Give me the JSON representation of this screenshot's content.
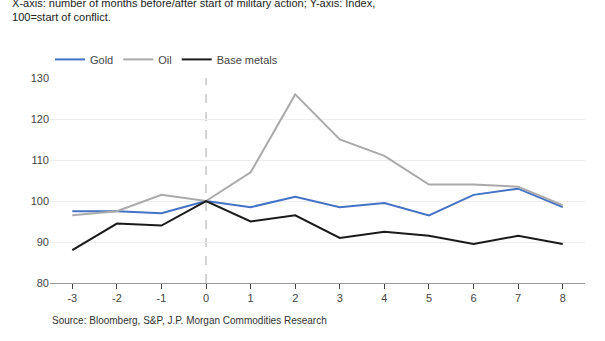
{
  "chart_data": {
    "type": "line",
    "subtitle": [
      "X-axis: number of months before/after start of military action; Y-axis: Index,",
      "100=start of conflict."
    ],
    "annotations": [
      "Source: Bloomberg, S&P, J.P. Morgan Commodities Research"
    ],
    "x": [
      -3,
      -2,
      -1,
      0,
      1,
      2,
      3,
      4,
      5,
      6,
      7,
      8
    ],
    "series": [
      {
        "name": "Gold",
        "color": "#4472C4",
        "values": [
          97.5,
          97.5,
          97.0,
          100.0,
          98.5,
          101.0,
          98.5,
          99.5,
          96.5,
          101.5,
          103.0,
          98.5
        ]
      },
      {
        "name": "Oil",
        "color": "#AAAAAA",
        "values": [
          96.5,
          97.5,
          101.5,
          100.0,
          107.0,
          126.0,
          115.0,
          111.0,
          104.0,
          104.0,
          103.5,
          99.0
        ]
      },
      {
        "name": "Base metals",
        "color": "#1A1A1A",
        "values": [
          88.0,
          94.5,
          94.0,
          100.0,
          95.0,
          96.5,
          91.0,
          92.5,
          91.5,
          89.5,
          91.5,
          89.5
        ]
      }
    ],
    "vline": {
      "x": 0,
      "color": "#AAAAAA",
      "line_style": "dashed"
    },
    "xlim": [
      -3.5,
      8.5
    ],
    "xticks": [
      -3,
      -2,
      -1,
      0,
      1,
      2,
      3,
      4,
      5,
      6,
      7,
      8
    ],
    "ylim": [
      80,
      130
    ],
    "yticks": [
      80,
      90,
      100,
      110,
      120,
      130
    ],
    "grid": "y",
    "legend": "upper left"
  }
}
